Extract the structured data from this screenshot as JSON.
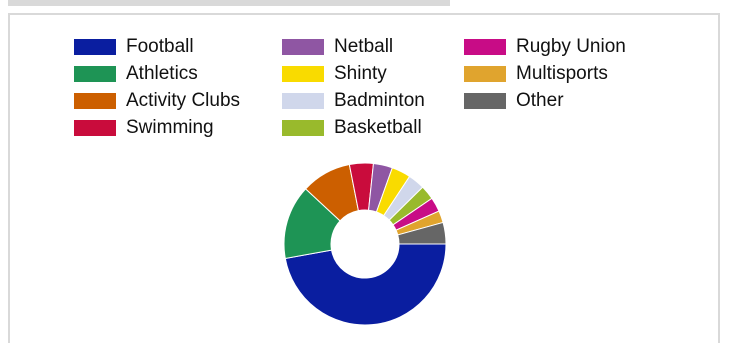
{
  "chart_data": {
    "type": "pie",
    "donut": true,
    "legend_position": "top",
    "categories": [
      "Football",
      "Athletics",
      "Activity Clubs",
      "Swimming",
      "Netball",
      "Shinty",
      "Badminton",
      "Basketball",
      "Rugby Union",
      "Multisports",
      "Other"
    ],
    "values": [
      49.5,
      15.5,
      10.5,
      5.0,
      4.0,
      4.0,
      3.5,
      3.0,
      3.0,
      2.5,
      4.5
    ],
    "colors": [
      "#0a1ea0",
      "#1e9455",
      "#cc5f00",
      "#c90c3c",
      "#8f56a3",
      "#f9db00",
      "#d0d7eb",
      "#99ba2c",
      "#c80c86",
      "#e0a42e",
      "#666666"
    ]
  }
}
